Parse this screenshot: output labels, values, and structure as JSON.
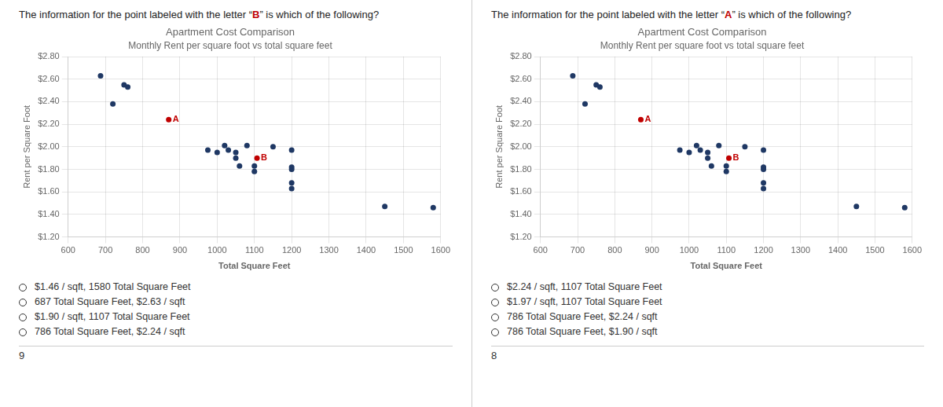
{
  "chart_data": [
    {
      "type": "scatter",
      "title": "Apartment Cost Comparison",
      "subtitle": "Monthly Rent per square foot vs total square feet",
      "x_label": "Total Square Feet",
      "y_label": "Rent per Square Foot",
      "x": [
        687,
        750,
        760,
        720,
        870,
        975,
        1000,
        1020,
        1030,
        1050,
        1050,
        1060,
        1080,
        1100,
        1107,
        1100,
        1150,
        1200,
        1200,
        1200,
        1200,
        1200,
        1450,
        1580
      ],
      "values": [
        2.63,
        2.55,
        2.53,
        2.38,
        2.24,
        1.97,
        1.95,
        2.01,
        1.97,
        1.95,
        1.9,
        1.83,
        2.01,
        1.83,
        1.9,
        1.78,
        2.0,
        1.97,
        1.82,
        1.8,
        1.68,
        1.63,
        1.47,
        1.46
      ],
      "colors": [
        "#1f3864",
        "#1f3864",
        "#1f3864",
        "#1f3864",
        "#c00000",
        "#1f3864",
        "#1f3864",
        "#1f3864",
        "#1f3864",
        "#1f3864",
        "#1f3864",
        "#1f3864",
        "#1f3864",
        "#1f3864",
        "#c00000",
        "#1f3864",
        "#1f3864",
        "#1f3864",
        "#1f3864",
        "#1f3864",
        "#1f3864",
        "#1f3864",
        "#1f3864",
        "#1f3864"
      ],
      "annotations": [
        {
          "text": "A",
          "x": 870,
          "y": 2.24,
          "color": "#c00000"
        },
        {
          "text": "B",
          "x": 1107,
          "y": 1.9,
          "color": "#c00000"
        }
      ],
      "xlim": [
        600,
        1600
      ],
      "ylim": [
        1.2,
        2.8
      ],
      "xticks": [
        600,
        700,
        800,
        900,
        1000,
        1100,
        1200,
        1300,
        1400,
        1500,
        1600
      ],
      "yticks": [
        {
          "value": 1.2,
          "label": "$1.20"
        },
        {
          "value": 1.4,
          "label": "$1.40"
        },
        {
          "value": 1.6,
          "label": "$1.60"
        },
        {
          "value": 1.8,
          "label": "$1.80"
        },
        {
          "value": 2.0,
          "label": "$2.00"
        },
        {
          "value": 2.2,
          "label": "$2.20"
        },
        {
          "value": 2.4,
          "label": "$2.40"
        },
        {
          "value": 2.6,
          "label": "$2.60"
        },
        {
          "value": 2.8,
          "label": "$2.80"
        }
      ],
      "grid": true,
      "question": [
        "The information for the point labeled with the letter “",
        "B",
        "” is which of the following?"
      ],
      "choices": [
        "$1.46 / sqft, 1580 Total Square Feet",
        "687 Total Square Feet, $2.63 / sqft",
        "$1.90 / sqft, 1107 Total Square Feet",
        "786 Total Square Feet, $2.24 / sqft"
      ],
      "page_number": "9"
    },
    {
      "type": "scatter",
      "title": "Apartment Cost Comparison",
      "subtitle": "Monthly Rent per square foot vs total square feet",
      "x_label": "Total Square Feet",
      "y_label": "Rent per Square Foot",
      "x": [
        687,
        750,
        760,
        720,
        870,
        975,
        1000,
        1020,
        1030,
        1050,
        1050,
        1060,
        1080,
        1100,
        1107,
        1100,
        1150,
        1200,
        1200,
        1200,
        1200,
        1200,
        1450,
        1580
      ],
      "values": [
        2.63,
        2.55,
        2.53,
        2.38,
        2.24,
        1.97,
        1.95,
        2.01,
        1.97,
        1.95,
        1.9,
        1.83,
        2.01,
        1.83,
        1.9,
        1.78,
        2.0,
        1.97,
        1.82,
        1.8,
        1.68,
        1.63,
        1.47,
        1.46
      ],
      "colors": [
        "#1f3864",
        "#1f3864",
        "#1f3864",
        "#1f3864",
        "#c00000",
        "#1f3864",
        "#1f3864",
        "#1f3864",
        "#1f3864",
        "#1f3864",
        "#1f3864",
        "#1f3864",
        "#1f3864",
        "#1f3864",
        "#c00000",
        "#1f3864",
        "#1f3864",
        "#1f3864",
        "#1f3864",
        "#1f3864",
        "#1f3864",
        "#1f3864",
        "#1f3864",
        "#1f3864"
      ],
      "annotations": [
        {
          "text": "A",
          "x": 870,
          "y": 2.24,
          "color": "#c00000"
        },
        {
          "text": "B",
          "x": 1107,
          "y": 1.9,
          "color": "#c00000"
        }
      ],
      "xlim": [
        600,
        1600
      ],
      "ylim": [
        1.2,
        2.8
      ],
      "xticks": [
        600,
        700,
        800,
        900,
        1000,
        1100,
        1200,
        1300,
        1400,
        1500,
        1600
      ],
      "yticks": [
        {
          "value": 1.2,
          "label": "$1.20"
        },
        {
          "value": 1.4,
          "label": "$1.40"
        },
        {
          "value": 1.6,
          "label": "$1.60"
        },
        {
          "value": 1.8,
          "label": "$1.80"
        },
        {
          "value": 2.0,
          "label": "$2.00"
        },
        {
          "value": 2.2,
          "label": "$2.20"
        },
        {
          "value": 2.4,
          "label": "$2.40"
        },
        {
          "value": 2.6,
          "label": "$2.60"
        },
        {
          "value": 2.8,
          "label": "$2.80"
        }
      ],
      "grid": true,
      "question": [
        "The information for the point labeled with the letter “",
        "A",
        "” is which of the following?"
      ],
      "choices": [
        "$2.24 / sqft, 1107 Total Square Feet",
        "$1.97 / sqft, 1107 Total Square Feet",
        "786 Total Square Feet, $2.24 / sqft",
        "786 Total Square Feet, $1.90 / sqft"
      ],
      "page_number": "8"
    }
  ]
}
